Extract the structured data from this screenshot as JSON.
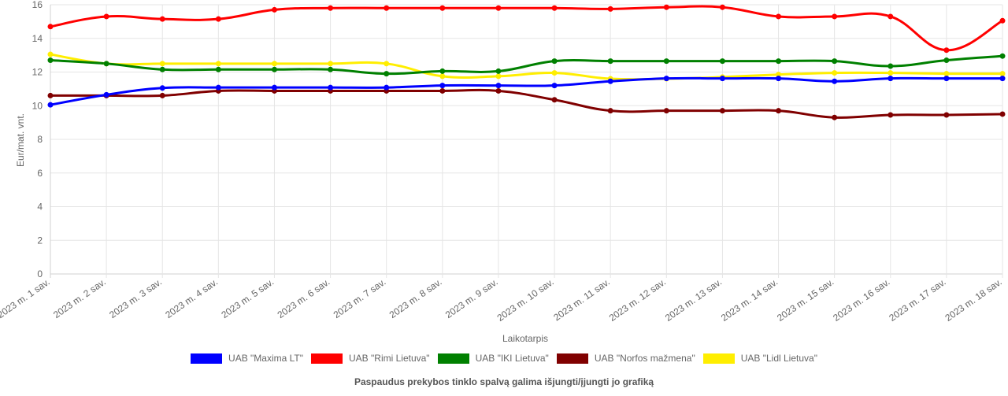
{
  "chart_data": {
    "type": "line",
    "xlabel": "Laikotarpis",
    "ylabel": "Eur/mat. vnt.",
    "ylim": [
      0,
      16
    ],
    "yticks": [
      0,
      2,
      4,
      6,
      8,
      10,
      12,
      14,
      16
    ],
    "grid": true,
    "legend_position": "bottom",
    "categories": [
      "2023 m. 1 sav.",
      "2023 m. 2 sav.",
      "2023 m. 3 sav.",
      "2023 m. 4 sav.",
      "2023 m. 5 sav.",
      "2023 m. 6 sav.",
      "2023 m. 7 sav.",
      "2023 m. 8 sav.",
      "2023 m. 9 sav.",
      "2023 m. 10 sav.",
      "2023 m. 11 sav.",
      "2023 m. 12 sav.",
      "2023 m. 13 sav.",
      "2023 m. 14 sav.",
      "2023 m. 15 sav.",
      "2023 m. 16 sav.",
      "2023 m. 17 sav.",
      "2023 m. 18 sav."
    ],
    "series": [
      {
        "name": "UAB \"Maxima LT\"",
        "color": "#0000ff",
        "values": [
          10.05,
          10.65,
          11.05,
          11.08,
          11.08,
          11.08,
          11.08,
          11.2,
          11.2,
          11.2,
          11.45,
          11.62,
          11.62,
          11.62,
          11.45,
          11.62,
          11.62,
          11.62
        ]
      },
      {
        "name": "UAB \"Rimi Lietuva\"",
        "color": "#ff0000",
        "values": [
          14.7,
          15.3,
          15.15,
          15.15,
          15.7,
          15.8,
          15.8,
          15.8,
          15.8,
          15.8,
          15.75,
          15.85,
          15.85,
          15.3,
          15.3,
          15.3,
          13.3,
          15.05
        ]
      },
      {
        "name": "UAB \"IKI Lietuva\"",
        "color": "#008000",
        "values": [
          12.7,
          12.5,
          12.15,
          12.15,
          12.15,
          12.15,
          11.9,
          12.05,
          12.05,
          12.65,
          12.65,
          12.65,
          12.65,
          12.65,
          12.65,
          12.35,
          12.7,
          12.95
        ]
      },
      {
        "name": "UAB \"Norfos mažmena\"",
        "color": "#800000",
        "values": [
          10.6,
          10.6,
          10.6,
          10.88,
          10.88,
          10.88,
          10.88,
          10.88,
          10.88,
          10.35,
          9.7,
          9.7,
          9.7,
          9.7,
          9.3,
          9.45,
          9.45,
          9.5
        ]
      },
      {
        "name": "UAB \"Lidl Lietuva\"",
        "color": "#ffee00",
        "values": [
          13.05,
          12.5,
          12.5,
          12.5,
          12.5,
          12.5,
          12.5,
          11.75,
          11.75,
          11.95,
          11.6,
          11.6,
          11.7,
          11.85,
          11.95,
          11.95,
          11.9,
          11.9
        ]
      }
    ]
  },
  "footnote": "Paspaudus prekybos tinklo spalvą galima išjungti/įjungti jo grafiką"
}
